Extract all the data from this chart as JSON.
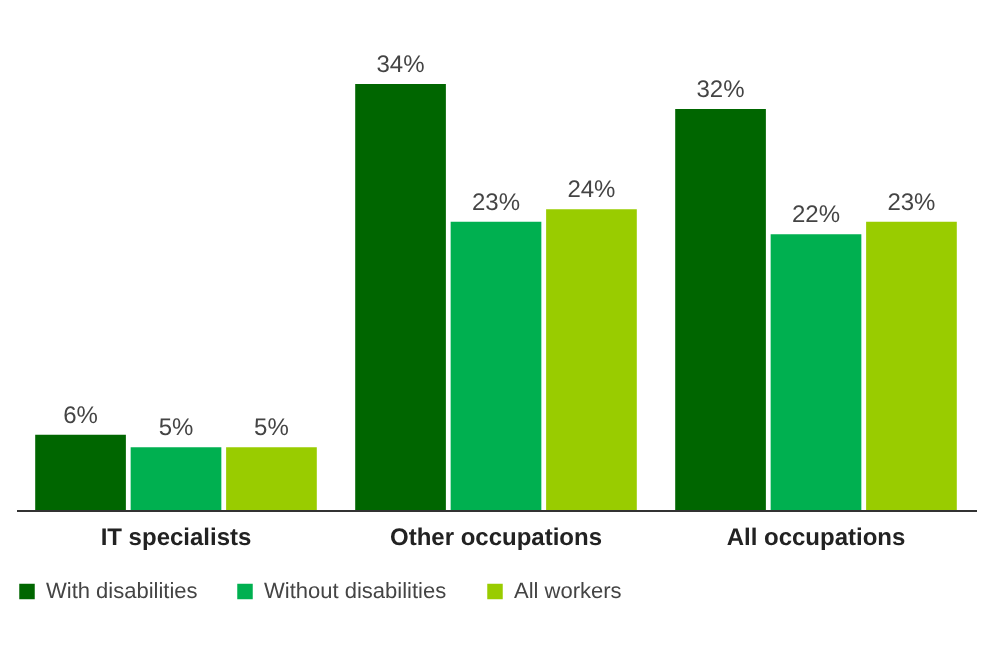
{
  "chart_data": {
    "type": "bar",
    "categories": [
      "IT specialists",
      "Other occupations",
      "All occupations"
    ],
    "series": [
      {
        "name": "With disabilities",
        "color": "#006600",
        "values": [
          6,
          34,
          32
        ],
        "value_labels": [
          "6%",
          "34%",
          "32%"
        ]
      },
      {
        "name": "Without disabilities",
        "color": "#00b050",
        "values": [
          5,
          23,
          22
        ],
        "value_labels": [
          "5%",
          "23%",
          "22%"
        ]
      },
      {
        "name": "All workers",
        "color": "#99cc00",
        "values": [
          5,
          24,
          23
        ],
        "value_labels": [
          "5%",
          "24%",
          "23%"
        ]
      }
    ],
    "legend": "bottom",
    "grid": false
  }
}
